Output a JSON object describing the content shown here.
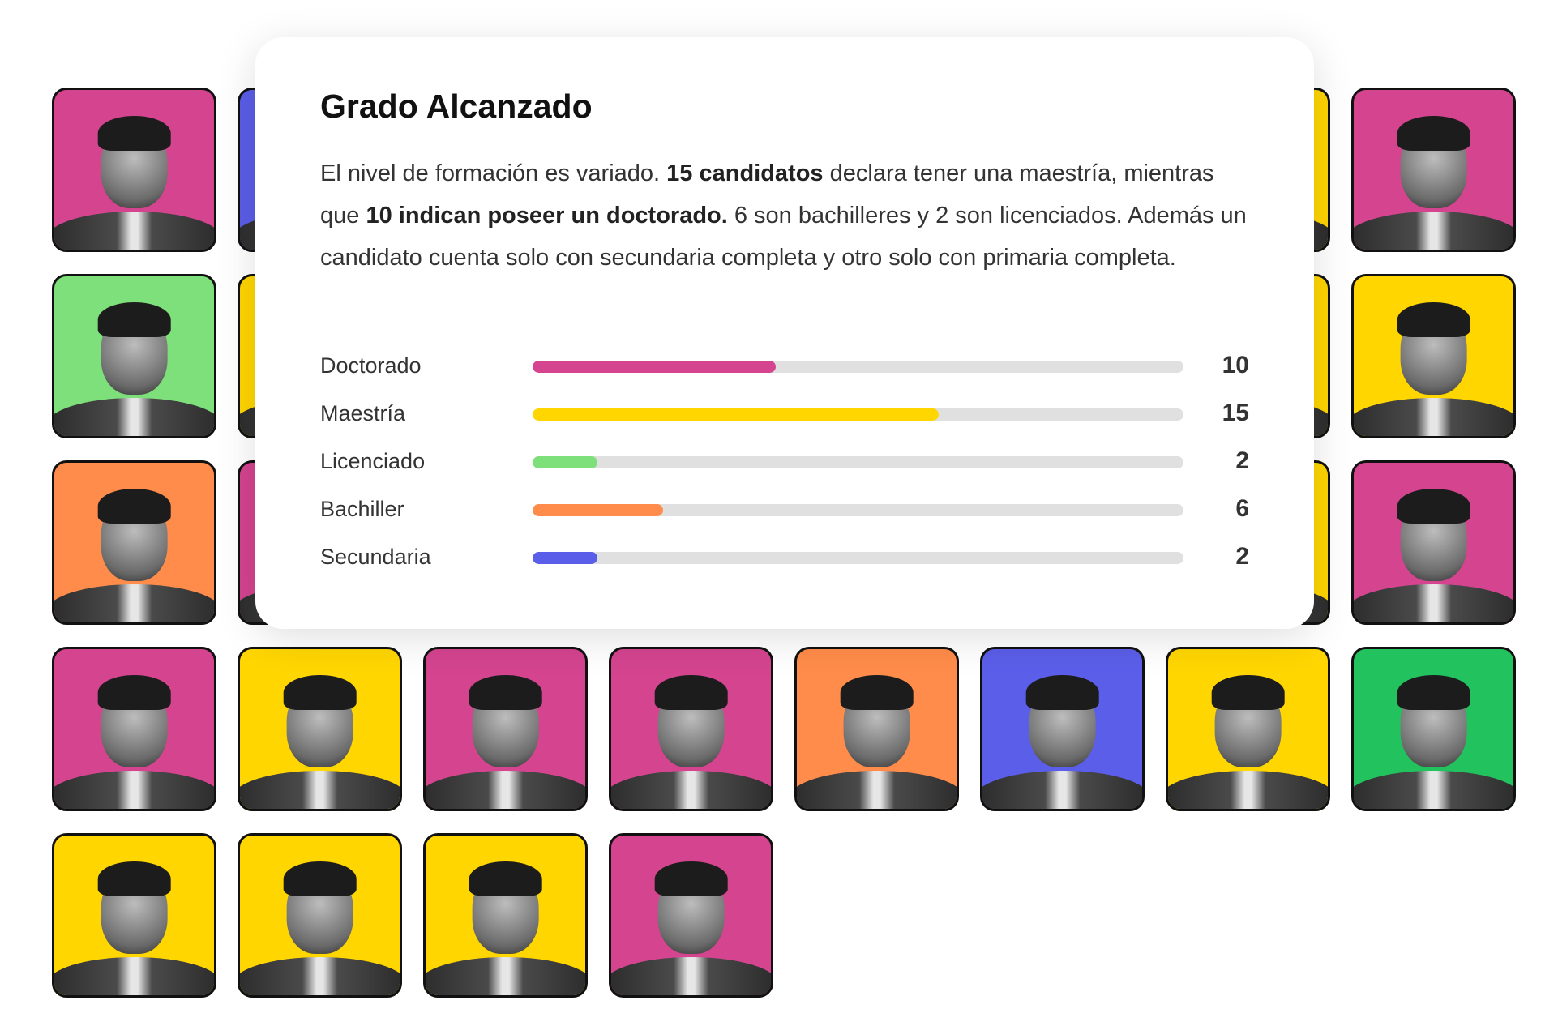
{
  "colors": {
    "magenta": "#d4448f",
    "yellow": "#ffd600",
    "green": "#7ee07a",
    "orange": "#ff8c4a",
    "blue": "#5b5ee8",
    "darkgreen": "#22c35e",
    "track": "#e0e0e0"
  },
  "tiles": [
    [
      "magenta",
      "blue",
      "magenta",
      "yellow",
      "orange",
      "magenta",
      "yellow",
      "magenta"
    ],
    [
      "green",
      "yellow",
      "magenta",
      "yellow",
      "blue",
      "magenta",
      "yellow",
      "yellow"
    ],
    [
      "orange",
      "magenta",
      "yellow",
      "magenta",
      "orange",
      "yellow",
      "yellow",
      "magenta"
    ],
    [
      "magenta",
      "yellow",
      "magenta",
      "magenta",
      "orange",
      "blue",
      "yellow",
      "darkgreen"
    ],
    [
      "yellow",
      "yellow",
      "yellow",
      "magenta"
    ]
  ],
  "card": {
    "title": "Grado Alcanzado",
    "desc": {
      "p1": "El nivel de formación es variado. ",
      "b1": "15 candidatos",
      "p2": " declara tener una maestría, mientras que ",
      "b2": "10 indican poseer un doctorado.",
      "p3": " 6 son bachilleres y 2 son licenciados. Además un candidato cuenta solo con secundaria completa y otro solo con primaria completa."
    }
  },
  "chart_data": {
    "type": "bar",
    "orientation": "horizontal",
    "title": "Grado Alcanzado",
    "categories": [
      "Doctorado",
      "Maestría",
      "Licenciado",
      "Bachiller",
      "Secundaria"
    ],
    "values": [
      10,
      15,
      2,
      6,
      2
    ],
    "fill_fraction": [
      0.374,
      0.624,
      0.1,
      0.2,
      0.1
    ],
    "colors": [
      "#d4448f",
      "#ffd600",
      "#7ee07a",
      "#ff8c4a",
      "#5b5ee8"
    ]
  }
}
